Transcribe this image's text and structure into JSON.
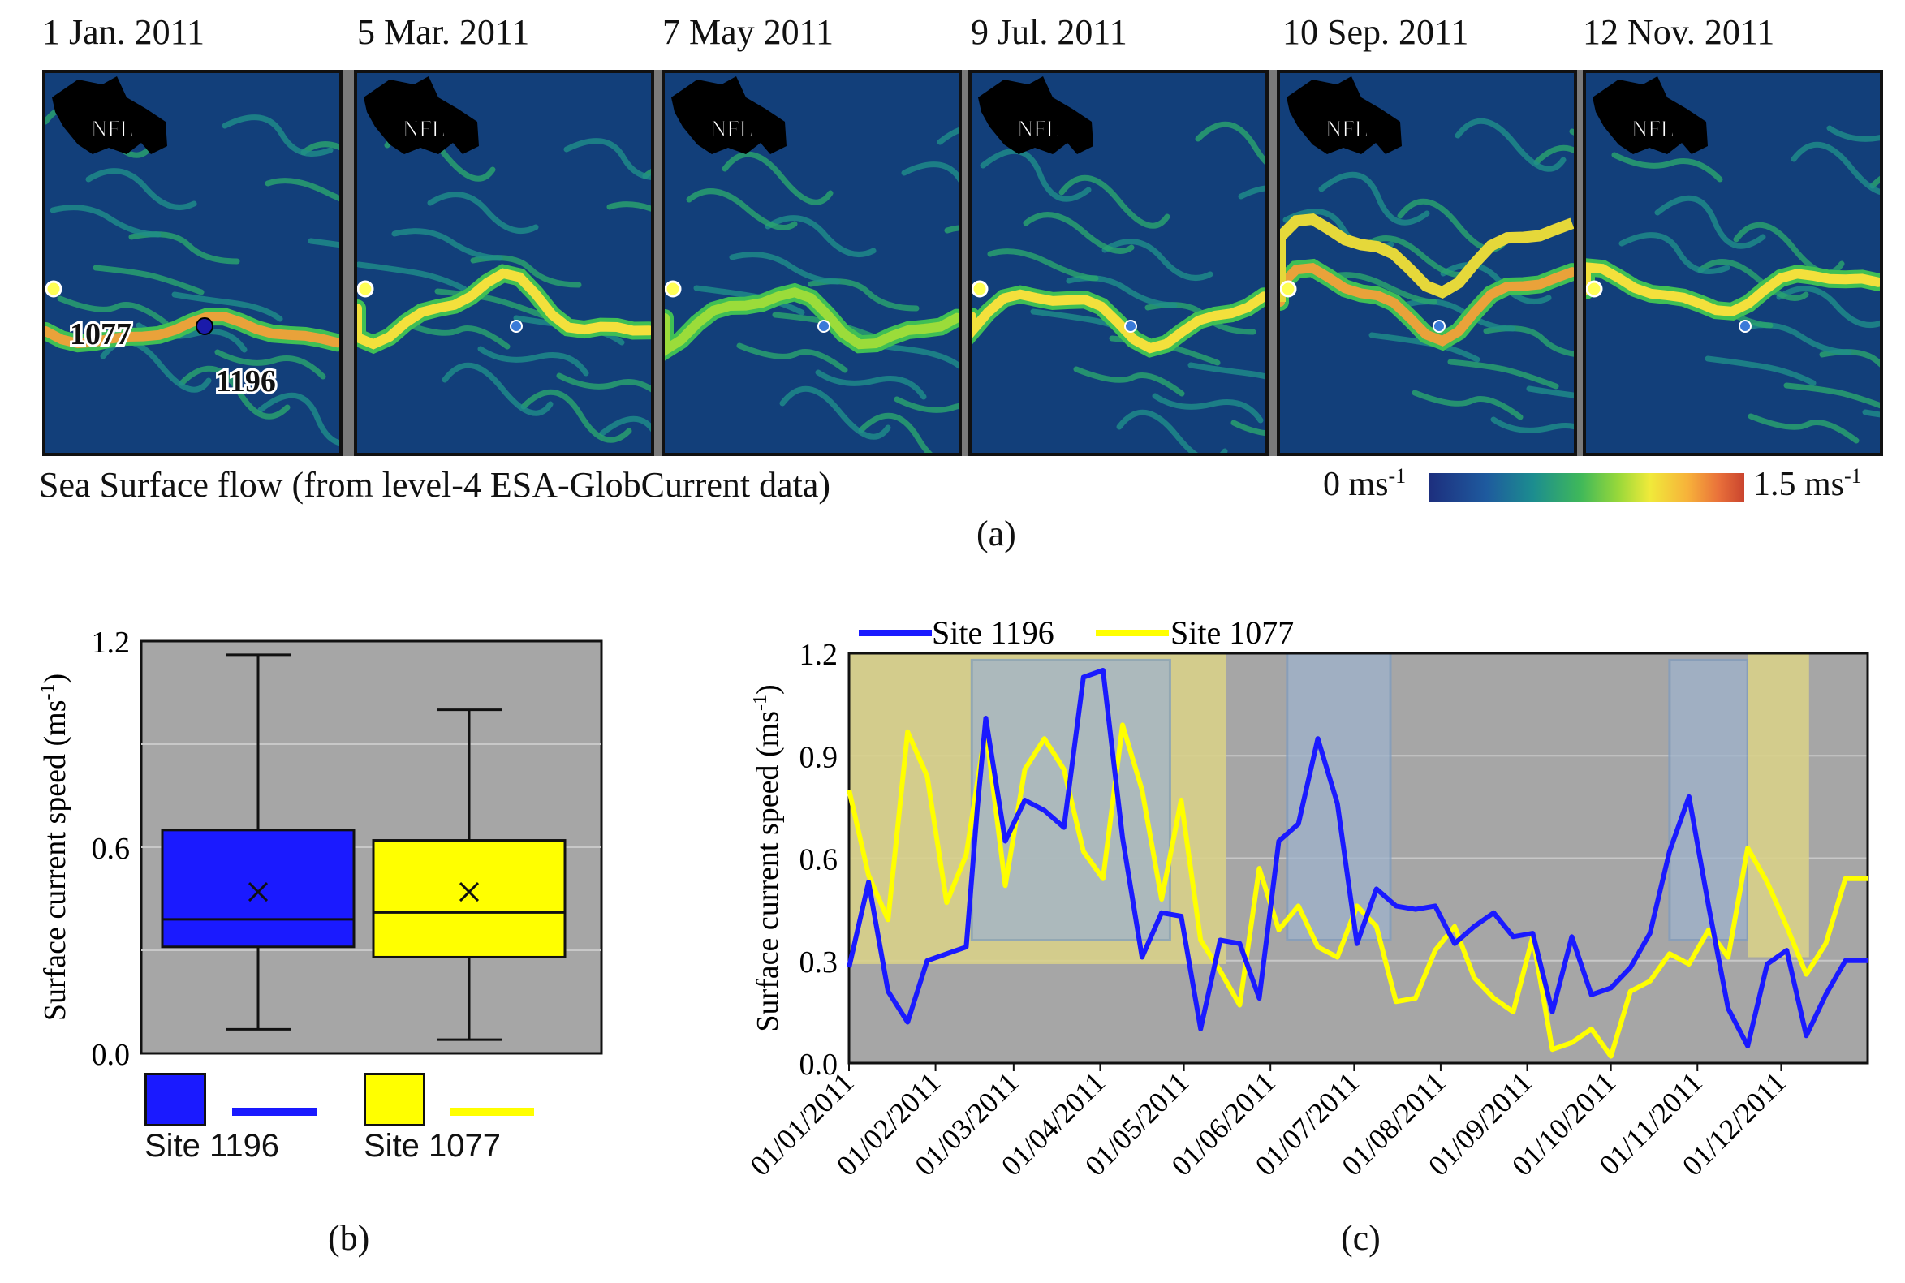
{
  "map_strip": {
    "panels": [
      {
        "date": "1 Jan.  2011",
        "region_label": "NFL",
        "site_labels": [
          "1077",
          "1196"
        ]
      },
      {
        "date": "5 Mar. 2011",
        "region_label": "NFL"
      },
      {
        "date": "7 May 2011",
        "region_label": "NFL"
      },
      {
        "date": "9 Jul. 2011",
        "region_label": "NFL"
      },
      {
        "date": "10 Sep. 2011",
        "region_label": "NFL"
      },
      {
        "date": "12 Nov. 2011",
        "region_label": "NFL"
      }
    ],
    "caption": "Sea Surface flow (from level-4 ESA-GlobCurrent data)",
    "colorbar": {
      "min_label": "0 ms",
      "max_label": "1.5 ms",
      "unit_exp": "-1",
      "range": [
        0,
        1.5
      ]
    },
    "panel_caption": "(a)"
  },
  "colors": {
    "site_1196": "#1a1aff",
    "site_1077": "#ffff00",
    "plot_bg": "#a6a6a6",
    "shade_blue": "#9fb3cc",
    "shade_yellow": "#d8d08a"
  },
  "chart_data": [
    {
      "type": "box",
      "panel_caption": "(b)",
      "ylabel": "Surface current speed (ms",
      "ylabel_exp": "-1",
      "ylabel_close": ")",
      "ylim": [
        0,
        1.2
      ],
      "y_ticks": [
        "0.0",
        "0.6",
        "1.2"
      ],
      "y_tick_values": [
        0,
        0.6,
        1.2
      ],
      "series": [
        {
          "name": "Site 1196",
          "min": 0.07,
          "q1": 0.31,
          "median": 0.39,
          "mean": 0.47,
          "q3": 0.65,
          "max": 1.16
        },
        {
          "name": "Site 1077",
          "min": 0.04,
          "q1": 0.28,
          "median": 0.41,
          "mean": 0.47,
          "q3": 0.62,
          "max": 1.0
        }
      ],
      "legend": [
        "Site 1196",
        "Site 1077"
      ]
    },
    {
      "type": "line",
      "panel_caption": "(c)",
      "ylabel": "Surface current speed (ms",
      "ylabel_exp": "-1",
      "ylabel_close": ")",
      "ylim": [
        0,
        1.2
      ],
      "y_ticks": [
        "0.0",
        "0.3",
        "0.6",
        "0.9",
        "1.2"
      ],
      "y_tick_values": [
        0,
        0.3,
        0.6,
        0.9,
        1.2
      ],
      "x_range_days": [
        0,
        365
      ],
      "x_ticks": [
        "01/01/2011",
        "01/02/2011",
        "01/03/2011",
        "01/04/2011",
        "01/05/2011",
        "01/06/2011",
        "01/07/2011",
        "01/08/2011",
        "01/09/2011",
        "01/10/2011",
        "01/11/2011",
        "01/12/2011"
      ],
      "x_tick_days": [
        0,
        31,
        59,
        90,
        120,
        151,
        181,
        212,
        243,
        273,
        304,
        334
      ],
      "legend": [
        "Site 1196",
        "Site 1077"
      ],
      "shaded_periods": [
        {
          "series": "Site 1077",
          "start_day": 0,
          "end_day": 135,
          "y_low": 0.29,
          "y_high": 1.2
        },
        {
          "series": "Site 1196",
          "start_day": 44,
          "end_day": 115,
          "y_low": 0.36,
          "y_high": 1.18
        },
        {
          "series": "Site 1196",
          "start_day": 157,
          "end_day": 194,
          "y_low": 0.36,
          "y_high": 1.2
        },
        {
          "series": "Site 1196",
          "start_day": 294,
          "end_day": 322,
          "y_low": 0.36,
          "y_high": 1.18
        },
        {
          "series": "Site 1077",
          "start_day": 322,
          "end_day": 344,
          "y_low": 0.31,
          "y_high": 1.2
        }
      ],
      "series": [
        {
          "name": "Site 1196",
          "days": [
            0,
            7,
            14,
            21,
            28,
            35,
            42,
            46,
            49,
            56,
            63,
            70,
            77,
            84,
            91,
            98,
            105,
            112,
            119,
            126,
            133,
            140,
            147,
            154,
            161,
            168,
            175,
            182,
            189,
            196,
            203,
            210,
            217,
            224,
            231,
            238,
            245,
            252,
            259,
            266,
            273,
            280,
            287,
            294,
            301,
            308,
            315,
            322,
            329,
            336,
            343,
            350,
            357,
            365
          ],
          "values": [
            0.28,
            0.53,
            0.21,
            0.12,
            0.3,
            0.32,
            0.34,
            0.75,
            1.01,
            0.65,
            0.77,
            0.74,
            0.69,
            1.13,
            1.15,
            0.66,
            0.31,
            0.44,
            0.43,
            0.1,
            0.36,
            0.35,
            0.19,
            0.65,
            0.7,
            0.95,
            0.76,
            0.35,
            0.51,
            0.46,
            0.45,
            0.46,
            0.35,
            0.4,
            0.44,
            0.37,
            0.38,
            0.15,
            0.37,
            0.2,
            0.22,
            0.28,
            0.38,
            0.62,
            0.78,
            0.46,
            0.16,
            0.05,
            0.29,
            0.33,
            0.08,
            0.2,
            0.3,
            0.3
          ]
        },
        {
          "name": "Site 1077",
          "days": [
            0,
            7,
            14,
            21,
            28,
            35,
            42,
            49,
            56,
            63,
            70,
            77,
            84,
            91,
            98,
            105,
            112,
            119,
            126,
            133,
            140,
            147,
            154,
            161,
            168,
            175,
            182,
            189,
            196,
            203,
            210,
            217,
            224,
            231,
            238,
            245,
            252,
            259,
            266,
            273,
            280,
            287,
            294,
            301,
            308,
            315,
            322,
            329,
            336,
            343,
            350,
            357,
            365
          ],
          "values": [
            0.8,
            0.55,
            0.42,
            0.97,
            0.84,
            0.47,
            0.61,
            0.98,
            0.52,
            0.86,
            0.95,
            0.86,
            0.62,
            0.54,
            0.99,
            0.8,
            0.48,
            0.77,
            0.36,
            0.27,
            0.17,
            0.57,
            0.39,
            0.46,
            0.34,
            0.31,
            0.46,
            0.4,
            0.18,
            0.19,
            0.33,
            0.4,
            0.25,
            0.19,
            0.15,
            0.37,
            0.04,
            0.06,
            0.1,
            0.02,
            0.21,
            0.24,
            0.32,
            0.29,
            0.39,
            0.31,
            0.63,
            0.53,
            0.4,
            0.26,
            0.35,
            0.54,
            0.54
          ]
        }
      ]
    }
  ]
}
